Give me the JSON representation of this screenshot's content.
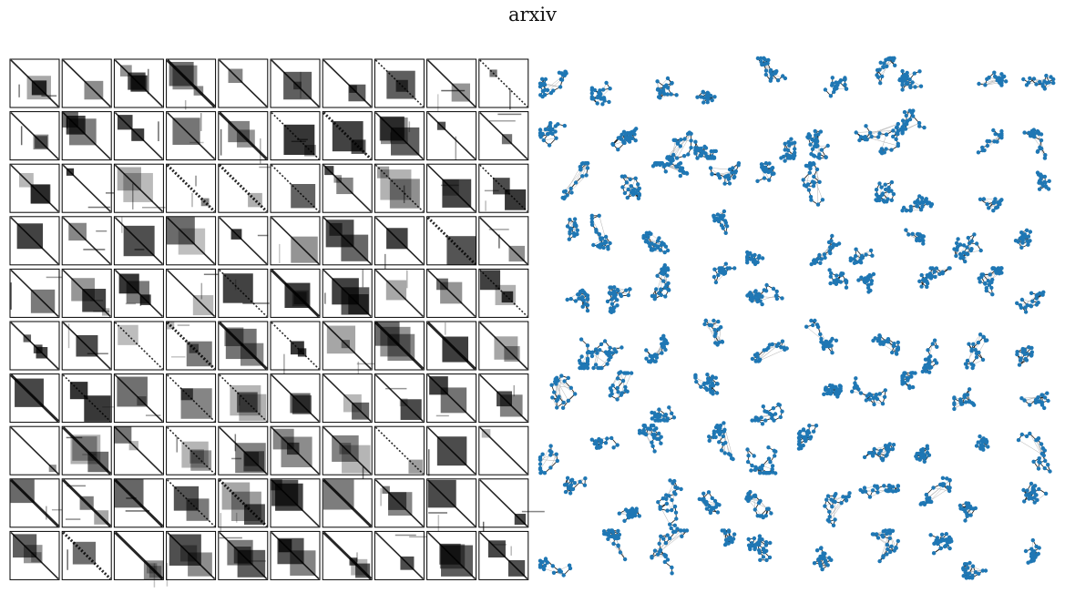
{
  "title": "arxiv",
  "grid": {
    "rows": 10,
    "cols": 10
  },
  "colors": {
    "matrix_frame": "#000000",
    "matrix_ink": "#000000",
    "node_fill": "#1f77b4",
    "edge_dark": "#1a1a1a",
    "edge_light": "#b0b0b0"
  },
  "panels": {
    "matrices": {
      "name": "adjacency-matrix-grid",
      "count": 100
    },
    "graphs": {
      "name": "graph-drawing-grid",
      "count": 100
    }
  }
}
